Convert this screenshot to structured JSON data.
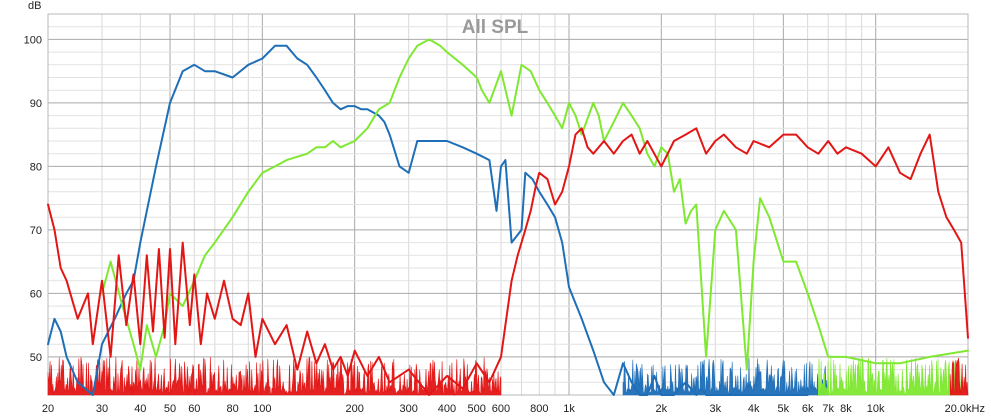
{
  "chart_data": {
    "type": "line",
    "title": "All SPL",
    "ylabel": "dB",
    "xlabel": "",
    "x_scale": "log",
    "xlim": [
      20,
      20000
    ],
    "ylim": [
      44,
      104
    ],
    "grid": true,
    "x_ticks": [
      {
        "value": 20,
        "label": "20"
      },
      {
        "value": 30,
        "label": "30"
      },
      {
        "value": 40,
        "label": "40"
      },
      {
        "value": 50,
        "label": "50"
      },
      {
        "value": 60,
        "label": "60"
      },
      {
        "value": 80,
        "label": "80"
      },
      {
        "value": 100,
        "label": "100"
      },
      {
        "value": 200,
        "label": "200"
      },
      {
        "value": 300,
        "label": "300"
      },
      {
        "value": 400,
        "label": "400"
      },
      {
        "value": 500,
        "label": "500"
      },
      {
        "value": 600,
        "label": "600"
      },
      {
        "value": 800,
        "label": "800"
      },
      {
        "value": 1000,
        "label": "1k"
      },
      {
        "value": 2000,
        "label": "2k"
      },
      {
        "value": 3000,
        "label": "3k"
      },
      {
        "value": 4000,
        "label": "4k"
      },
      {
        "value": 5000,
        "label": "5k"
      },
      {
        "value": 6000,
        "label": "6k"
      },
      {
        "value": 7000,
        "label": "7k"
      },
      {
        "value": 8000,
        "label": "8k"
      },
      {
        "value": 10000,
        "label": "10k"
      },
      {
        "value": 20000,
        "label": "20.0kHz"
      }
    ],
    "y_ticks": [
      {
        "value": 50,
        "label": "50"
      },
      {
        "value": 60,
        "label": "60"
      },
      {
        "value": 70,
        "label": "70"
      },
      {
        "value": 80,
        "label": "80"
      },
      {
        "value": 90,
        "label": "90"
      },
      {
        "value": 100,
        "label": "100"
      }
    ],
    "series": [
      {
        "color": "#1f6fb8",
        "x": [
          20,
          21,
          22,
          23,
          25,
          28,
          30,
          33,
          36,
          38,
          40,
          45,
          50,
          55,
          60,
          65,
          70,
          80,
          90,
          100,
          110,
          120,
          130,
          140,
          150,
          160,
          170,
          180,
          190,
          200,
          210,
          220,
          240,
          250,
          260,
          280,
          300,
          320,
          350,
          400,
          450,
          500,
          550,
          580,
          600,
          620,
          650,
          700,
          720,
          760,
          800,
          850,
          900,
          950,
          1000,
          1100,
          1200,
          1300,
          1400,
          1500,
          1600,
          1700,
          1800,
          1900,
          2000,
          2200,
          2400,
          2600,
          2700,
          2800,
          3000,
          3500,
          4000,
          5000,
          6000
        ],
        "y": [
          52,
          56,
          54,
          50,
          46,
          44,
          52,
          56,
          60,
          62,
          68,
          80,
          90,
          95,
          96,
          95,
          95,
          94,
          96,
          97,
          99,
          99,
          97,
          96,
          94,
          92,
          90,
          89,
          89.5,
          89.5,
          89,
          89,
          88,
          87,
          85,
          80,
          79,
          84,
          84,
          84,
          83,
          82,
          81,
          73,
          80,
          81,
          68,
          70,
          79,
          78,
          76,
          74,
          72,
          68,
          61,
          56,
          51,
          46,
          44,
          49,
          46,
          44,
          44,
          47,
          44,
          44,
          46,
          44,
          45,
          44,
          44,
          44,
          44,
          44,
          44
        ]
      },
      {
        "color": "#7fe831",
        "x": [
          30,
          32,
          35,
          38,
          40,
          42,
          45,
          48,
          50,
          55,
          60,
          65,
          70,
          80,
          90,
          100,
          110,
          120,
          140,
          150,
          160,
          170,
          180,
          200,
          220,
          240,
          260,
          280,
          300,
          320,
          350,
          380,
          400,
          450,
          500,
          520,
          550,
          600,
          650,
          700,
          750,
          800,
          850,
          900,
          950,
          1000,
          1050,
          1100,
          1200,
          1250,
          1300,
          1400,
          1500,
          1600,
          1700,
          1800,
          1900,
          2000,
          2100,
          2200,
          2300,
          2400,
          2500,
          2600,
          2800,
          3000,
          3200,
          3500,
          3800,
          4000,
          4200,
          4500,
          5000,
          5500,
          6000,
          6500,
          7000,
          8000,
          10000,
          12000,
          15000,
          20000
        ],
        "y": [
          60,
          65,
          58,
          52,
          48,
          55,
          50,
          55,
          60,
          58,
          62,
          66,
          68,
          72,
          76,
          79,
          80,
          81,
          82,
          83,
          83,
          84,
          83,
          84,
          86,
          89,
          90,
          94,
          97,
          99,
          100,
          99,
          98,
          96,
          94,
          92,
          90,
          95,
          88,
          96,
          95,
          92,
          90,
          88,
          86,
          90,
          88,
          85,
          90,
          88,
          84,
          87,
          90,
          88,
          86,
          82,
          80,
          83,
          82,
          76,
          78,
          71,
          73,
          74,
          50,
          70,
          73,
          70,
          48,
          65,
          75,
          72,
          65,
          65,
          60,
          55,
          50,
          50,
          49,
          49,
          50,
          51
        ]
      },
      {
        "color": "#e31616",
        "x": [
          20,
          21,
          22,
          23,
          25,
          27,
          28,
          30,
          32,
          34,
          36,
          38,
          40,
          42,
          44,
          46,
          48,
          50,
          52,
          55,
          58,
          60,
          63,
          66,
          70,
          75,
          80,
          85,
          90,
          95,
          100,
          110,
          120,
          130,
          140,
          150,
          160,
          170,
          180,
          190,
          200,
          220,
          240,
          260,
          300,
          350,
          400,
          450,
          500,
          550,
          600,
          620,
          650,
          680,
          700,
          720,
          750,
          780,
          800,
          850,
          900,
          950,
          1000,
          1050,
          1100,
          1150,
          1200,
          1300,
          1400,
          1500,
          1600,
          1700,
          1800,
          2000,
          2200,
          2400,
          2600,
          2800,
          3000,
          3200,
          3500,
          3800,
          4000,
          4500,
          5000,
          5500,
          6000,
          6500,
          7000,
          7500,
          8000,
          9000,
          10000,
          11000,
          12000,
          13000,
          14000,
          15000,
          16000,
          17000,
          18000,
          19000,
          20000
        ],
        "y": [
          74,
          70,
          64,
          62,
          56,
          60,
          52,
          62,
          50,
          66,
          55,
          63,
          52,
          66,
          54,
          67,
          53,
          67,
          52,
          68,
          55,
          63,
          52,
          60,
          56,
          62,
          56,
          55,
          60,
          50,
          56,
          52,
          55,
          48,
          54,
          49,
          52,
          48,
          50,
          47,
          51,
          47,
          50,
          46,
          48,
          44,
          47,
          45,
          49,
          46,
          50,
          55,
          62,
          66,
          68,
          70,
          73,
          77,
          79,
          78,
          74,
          76,
          80,
          85,
          86,
          83,
          82,
          84,
          82,
          84,
          85,
          82,
          84,
          80,
          84,
          85,
          86,
          82,
          84,
          85,
          83,
          82,
          84,
          83,
          85,
          85,
          83,
          82,
          84,
          82,
          83,
          82,
          80,
          83,
          79,
          78,
          82,
          85,
          76,
          72,
          70,
          68,
          53
        ]
      }
    ],
    "noise_floor_fills": [
      {
        "color": "#e31616",
        "x_range": [
          20,
          600
        ],
        "level": "low"
      },
      {
        "color": "#1f6fb8",
        "x_range": [
          1500,
          7000
        ],
        "level": "low"
      },
      {
        "color": "#7fe831",
        "x_range": [
          6500,
          19000
        ],
        "level": "low"
      },
      {
        "color": "#e31616",
        "x_range": [
          17500,
          20000
        ],
        "level": "low"
      }
    ]
  }
}
